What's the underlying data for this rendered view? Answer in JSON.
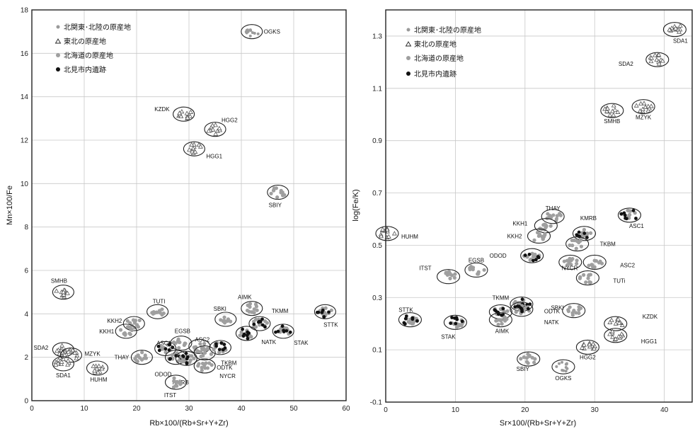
{
  "legend_items": [
    {
      "marker": "small-grey-dot",
      "label": "北関東･北陸の原産地"
    },
    {
      "marker": "triangle",
      "label": "東北の原産地"
    },
    {
      "marker": "large-grey-dot",
      "label": "北海道の原産地"
    },
    {
      "marker": "black-dot",
      "label": "北見市内遺跡"
    }
  ],
  "colors": {
    "northern_kanto": "#9a9a9a",
    "hokkaido": "#9f9f9f",
    "tohoku": "#555555",
    "site": "#111111",
    "ellipse": "#222222",
    "grid": "#c8c8c8"
  },
  "chart_data": [
    {
      "type": "scatter",
      "title": "",
      "xlabel": "Rb×100/(Rb+Sr+Y+Zr)",
      "ylabel": "Mn×100/Fe",
      "xlim": [
        0,
        60
      ],
      "ylim": [
        0,
        18
      ],
      "x_ticks": [
        0,
        10,
        20,
        30,
        40,
        50,
        60
      ],
      "y_ticks": [
        0,
        2,
        4,
        6,
        8,
        10,
        12,
        14,
        16,
        18
      ],
      "grid": true,
      "legend_position": "top-left",
      "clusters": [
        {
          "name": "OGKS",
          "group": "northern_kanto",
          "x": 42,
          "y": 17.0
        },
        {
          "name": "KZDK",
          "group": "tohoku",
          "x": 29,
          "y": 13.2
        },
        {
          "name": "HGG2",
          "group": "tohoku",
          "x": 35,
          "y": 12.5
        },
        {
          "name": "HGG1",
          "group": "tohoku",
          "x": 31,
          "y": 11.6
        },
        {
          "name": "SBIY",
          "group": "hokkaido",
          "x": 47,
          "y": 9.6
        },
        {
          "name": "SMHB",
          "group": "tohoku",
          "x": 6,
          "y": 5.0
        },
        {
          "name": "SDA2",
          "group": "tohoku",
          "x": 6,
          "y": 2.35
        },
        {
          "name": "MZYK",
          "group": "tohoku",
          "x": 7.5,
          "y": 2.1
        },
        {
          "name": "SDA1",
          "group": "tohoku",
          "x": 6,
          "y": 1.7
        },
        {
          "name": "HUHM",
          "group": "tohoku",
          "x": 12.5,
          "y": 1.5
        },
        {
          "name": "TUTI",
          "group": "hokkaido",
          "x": 24,
          "y": 4.1
        },
        {
          "name": "KKH2",
          "group": "hokkaido",
          "x": 19.5,
          "y": 3.55
        },
        {
          "name": "KKH1",
          "group": "hokkaido",
          "x": 18,
          "y": 3.2
        },
        {
          "name": "THAY",
          "group": "hokkaido",
          "x": 21,
          "y": 2.0
        },
        {
          "name": "ASC1",
          "group": "hokkaido",
          "x": 25.5,
          "y": 2.4
        },
        {
          "name": "EGSB",
          "group": "hokkaido",
          "x": 28.5,
          "y": 2.65
        },
        {
          "name": "ASC2",
          "group": "hokkaido",
          "x": 32,
          "y": 2.5
        },
        {
          "name": "ODOD",
          "group": "hokkaido",
          "x": 27.5,
          "y": 2.0
        },
        {
          "name": "KMRB",
          "group": "hokkaido",
          "x": 29.5,
          "y": 1.95
        },
        {
          "name": "ITST",
          "group": "hokkaido",
          "x": 27.5,
          "y": 0.85
        },
        {
          "name": "NYCR",
          "group": "hokkaido",
          "x": 33,
          "y": 1.6
        },
        {
          "name": "TKBM",
          "group": "hokkaido",
          "x": 33,
          "y": 2.2
        },
        {
          "name": "SBKI",
          "group": "hokkaido",
          "x": 37,
          "y": 3.75
        },
        {
          "name": "AIMK",
          "group": "hokkaido",
          "x": 42,
          "y": 4.25
        },
        {
          "name": "TKMM",
          "group": "hokkaido",
          "x": 43.5,
          "y": 3.55
        },
        {
          "name": "NATK",
          "group": "hokkaido",
          "x": 41,
          "y": 3.1
        },
        {
          "name": "ODTK",
          "group": "hokkaido",
          "x": 36,
          "y": 2.45
        },
        {
          "name": "STAK",
          "group": "hokkaido",
          "x": 48,
          "y": 3.2
        },
        {
          "name": "STTK",
          "group": "hokkaido",
          "x": 56,
          "y": 4.1
        }
      ]
    },
    {
      "type": "scatter",
      "title": "",
      "xlabel": "Sr×100/(Rb+Sr+Y+Zr)",
      "ylabel": "log(Fe/K)",
      "xlim": [
        0,
        44
      ],
      "ylim": [
        -0.1,
        1.4
      ],
      "x_ticks": [
        0,
        10,
        20,
        30,
        40
      ],
      "y_ticks": [
        -0.1,
        0.1,
        0.3,
        0.5,
        0.7,
        0.9,
        1.1,
        1.3
      ],
      "grid": true,
      "legend_position": "top-left",
      "clusters": [
        {
          "name": "SDA1",
          "group": "tohoku",
          "x": 41.5,
          "y": 1.325
        },
        {
          "name": "SDA2",
          "group": "tohoku",
          "x": 39,
          "y": 1.21
        },
        {
          "name": "SMHB",
          "group": "tohoku",
          "x": 32.5,
          "y": 1.015
        },
        {
          "name": "MZYK",
          "group": "tohoku",
          "x": 37,
          "y": 1.03
        },
        {
          "name": "HUHM",
          "group": "tohoku",
          "x": 0.2,
          "y": 0.545
        },
        {
          "name": "THAY",
          "group": "hokkaido",
          "x": 24,
          "y": 0.61
        },
        {
          "name": "KKH1",
          "group": "hokkaido",
          "x": 23,
          "y": 0.575
        },
        {
          "name": "KKH2",
          "group": "hokkaido",
          "x": 22,
          "y": 0.535
        },
        {
          "name": "KMRB",
          "group": "hokkaido",
          "x": 28.5,
          "y": 0.545
        },
        {
          "name": "ASC1",
          "group": "hokkaido",
          "x": 35,
          "y": 0.615
        },
        {
          "name": "TKBM",
          "group": "hokkaido",
          "x": 27.5,
          "y": 0.505
        },
        {
          "name": "ODOD",
          "group": "hokkaido",
          "x": 21,
          "y": 0.46
        },
        {
          "name": "NYCR",
          "group": "hokkaido",
          "x": 26.5,
          "y": 0.435
        },
        {
          "name": "ASC2",
          "group": "hokkaido",
          "x": 30,
          "y": 0.435
        },
        {
          "name": "TUTi",
          "group": "hokkaido",
          "x": 29,
          "y": 0.375
        },
        {
          "name": "EGSB",
          "group": "hokkaido",
          "x": 13,
          "y": 0.405
        },
        {
          "name": "ITST",
          "group": "hokkaido",
          "x": 9,
          "y": 0.38
        },
        {
          "name": "STTK",
          "group": "hokkaido",
          "x": 3.5,
          "y": 0.215
        },
        {
          "name": "STAK",
          "group": "hokkaido",
          "x": 10,
          "y": 0.205
        },
        {
          "name": "TKMM",
          "group": "hokkaido",
          "x": 16.5,
          "y": 0.245
        },
        {
          "name": "AIMK",
          "group": "hokkaido",
          "x": 16.5,
          "y": 0.215
        },
        {
          "name": "ODTK",
          "group": "hokkaido",
          "x": 19.5,
          "y": 0.275
        },
        {
          "name": "NATK",
          "group": "hokkaido",
          "x": 19.5,
          "y": 0.255
        },
        {
          "name": "SBKI",
          "group": "hokkaido",
          "x": 27,
          "y": 0.25
        },
        {
          "name": "KZDK",
          "group": "tohoku",
          "x": 33,
          "y": 0.2
        },
        {
          "name": "HGG1",
          "group": "tohoku",
          "x": 33,
          "y": 0.155
        },
        {
          "name": "HGG2",
          "group": "tohoku",
          "x": 29,
          "y": 0.11
        },
        {
          "name": "SBIY",
          "group": "hokkaido",
          "x": 20.5,
          "y": 0.065
        },
        {
          "name": "OGKS",
          "group": "northern_kanto",
          "x": 25.5,
          "y": 0.035
        }
      ]
    }
  ]
}
